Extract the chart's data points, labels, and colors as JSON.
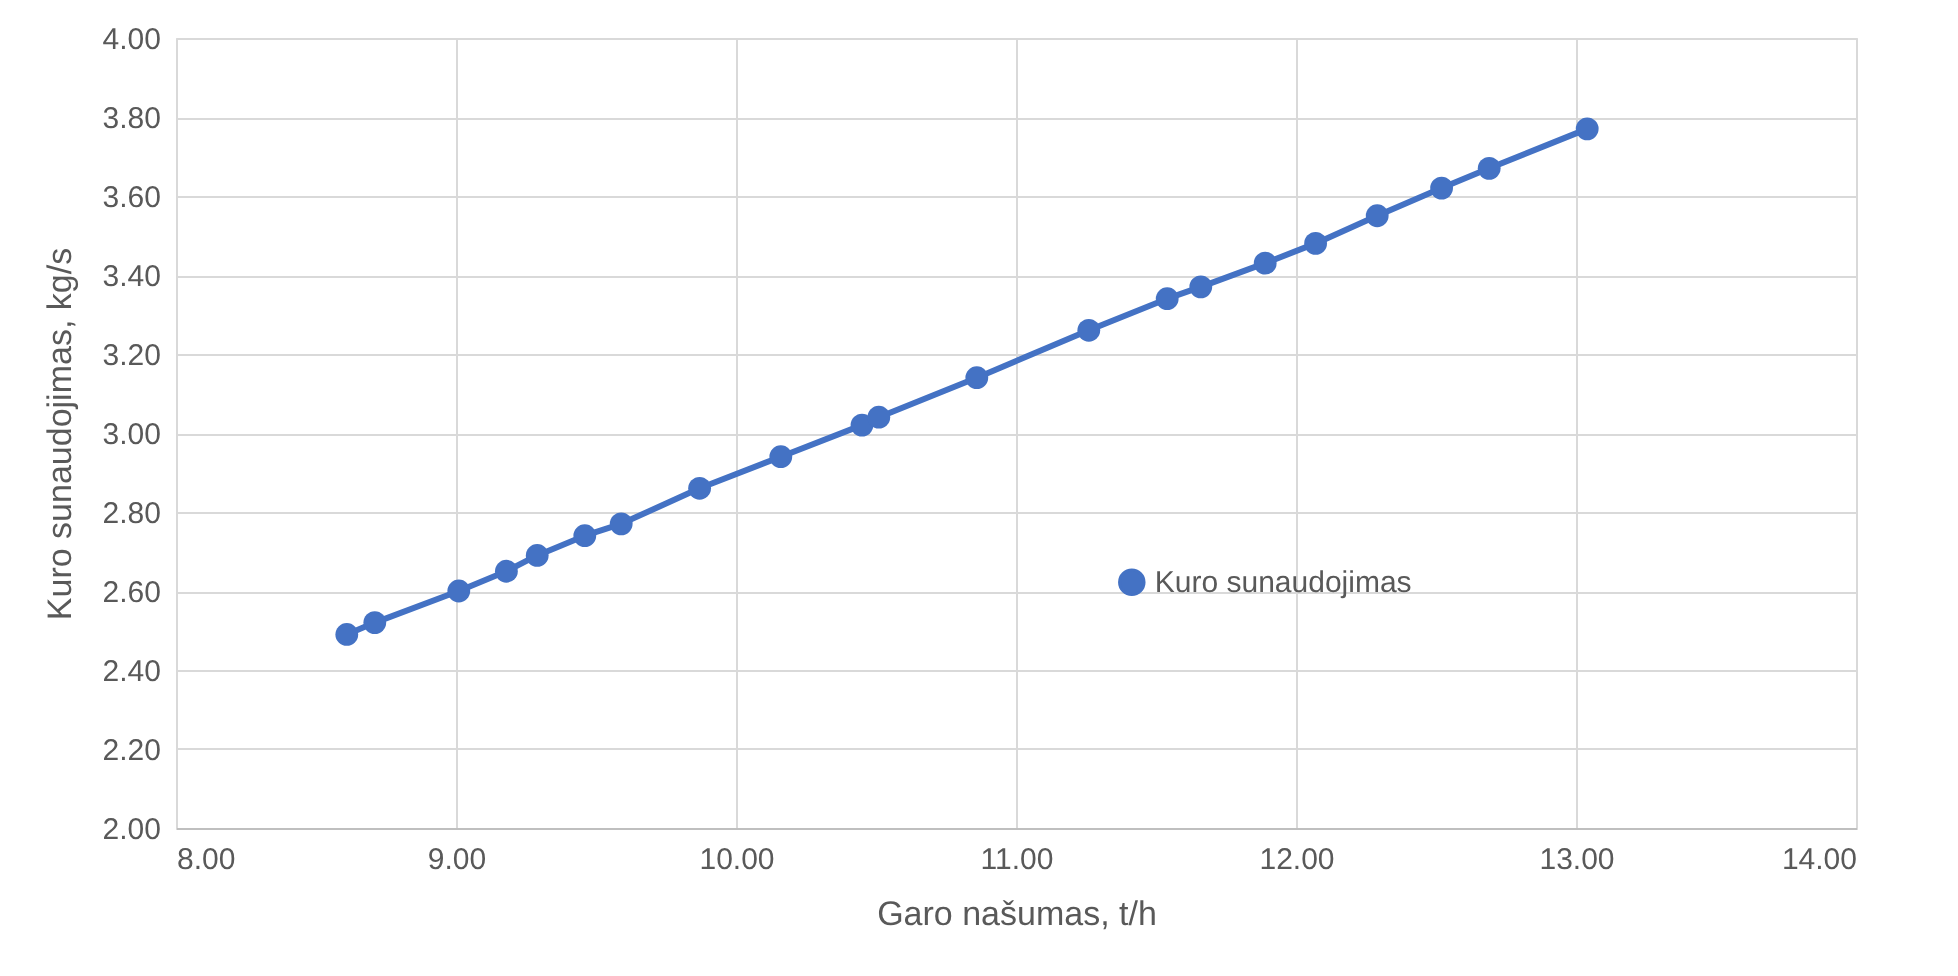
{
  "chart_data": {
    "type": "line",
    "xlabel": "Garo našumas, t/h",
    "ylabel": "Kuro sunaudojimas, kg/s",
    "x": [
      8.61,
      8.71,
      9.01,
      9.18,
      9.29,
      9.46,
      9.59,
      9.87,
      10.16,
      10.45,
      10.51,
      10.86,
      11.26,
      11.54,
      11.66,
      11.89,
      12.07,
      12.29,
      12.52,
      12.69,
      13.04
    ],
    "series": [
      {
        "name": "Kuro sunaudojimas",
        "color": "#4472c4",
        "values": [
          2.49,
          2.52,
          2.6,
          2.65,
          2.69,
          2.74,
          2.77,
          2.86,
          2.94,
          3.02,
          3.04,
          3.14,
          3.26,
          3.34,
          3.37,
          3.43,
          3.48,
          3.55,
          3.62,
          3.67,
          3.77
        ]
      }
    ],
    "xlim": [
      8,
      14
    ],
    "ylim": [
      2,
      4
    ],
    "xticks": [
      {
        "value": 8,
        "label": "8.00"
      },
      {
        "value": 9,
        "label": "9.00"
      },
      {
        "value": 10,
        "label": "10.00"
      },
      {
        "value": 11,
        "label": "11.00"
      },
      {
        "value": 12,
        "label": "12.00"
      },
      {
        "value": 13,
        "label": "13.00"
      },
      {
        "value": 14,
        "label": "14.00"
      }
    ],
    "yticks": [
      {
        "value": 2,
        "label": "2.00"
      },
      {
        "value": 2.2,
        "label": "2.20"
      },
      {
        "value": 2.4,
        "label": "2.40"
      },
      {
        "value": 2.6,
        "label": "2.60"
      },
      {
        "value": 2.8,
        "label": "2.80"
      },
      {
        "value": 3,
        "label": "3.00"
      },
      {
        "value": 3.2,
        "label": "3.20"
      },
      {
        "value": 3.4,
        "label": "3.40"
      },
      {
        "value": 3.6,
        "label": "3.60"
      },
      {
        "value": 3.8,
        "label": "3.80"
      },
      {
        "value": 4,
        "label": "4.00"
      }
    ],
    "grid": true,
    "legend": "bottom",
    "marker": "circle",
    "line_style": "solid"
  }
}
